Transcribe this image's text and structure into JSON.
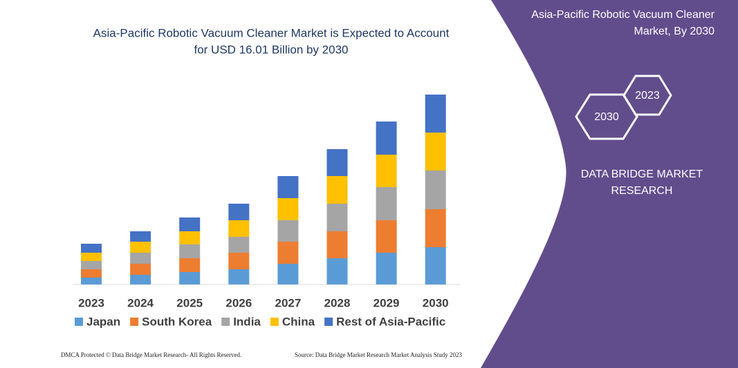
{
  "chart_data": {
    "type": "stacked-bar",
    "title": [
      "Asia-Pacific Robotic Vacuum Cleaner Market is Expected to Account",
      "for USD 16.01 Billion by 2030"
    ],
    "categories": [
      "2023",
      "2024",
      "2025",
      "2026",
      "2027",
      "2028",
      "2029",
      "2030"
    ],
    "series": [
      {
        "name": "Japan",
        "color": "#5b9bd5",
        "values": [
          10,
          14,
          18,
          22,
          30,
          38,
          46,
          54
        ]
      },
      {
        "name": "South Korea",
        "color": "#ed7d31",
        "values": [
          12,
          16,
          20,
          24,
          32,
          39,
          47,
          55
        ]
      },
      {
        "name": "India",
        "color": "#a5a5a5",
        "values": [
          12,
          16,
          20,
          23,
          31,
          40,
          48,
          56
        ]
      },
      {
        "name": "China",
        "color": "#ffc000",
        "values": [
          12,
          16,
          19,
          24,
          32,
          40,
          47,
          55
        ]
      },
      {
        "name": "Rest of Asia-Pacific",
        "color": "#4472c4",
        "values": [
          13,
          15,
          20,
          24,
          32,
          39,
          48,
          55
        ]
      }
    ],
    "ylim": [
      0,
      280
    ]
  },
  "side_panel": {
    "title": [
      "Asia-Pacific Robotic Vacuum Cleaner",
      "Market, By 2030"
    ],
    "hexagons": [
      "2023",
      "2030"
    ],
    "brand": [
      "DATA BRIDGE MARKET",
      "RESEARCH"
    ]
  },
  "footer": {
    "left": "DMCA Protected © Data Bridge Market Research- All Rights Reserved.",
    "right": "Source: Data Bridge Market Research  Market Analysis Study 2023"
  }
}
